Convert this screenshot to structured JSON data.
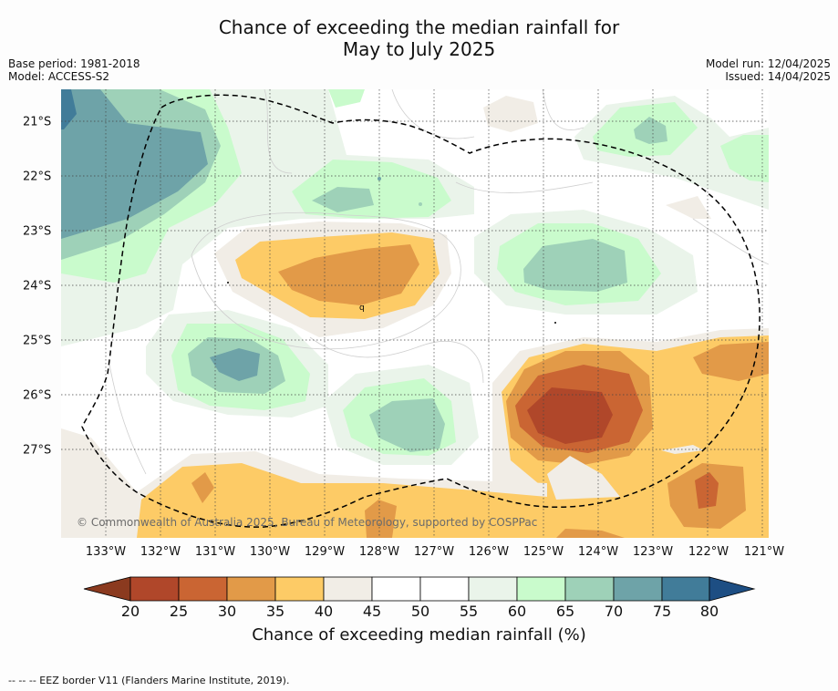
{
  "title_line1": "Chance of exceeding the median rainfall for",
  "title_line2": "May to July 2025",
  "base_period": "Base period: 1981-2018",
  "model": "Model: ACCESS-S2",
  "model_run": "Model run: 12/04/2025",
  "issued": "Issued: 14/04/2025",
  "copyright": "© Commonwealth of Australia 2025, Bureau of Meteorology, supported by COSPPac",
  "longitude_labels": [
    "133°W",
    "132°W",
    "131°W",
    "130°W",
    "129°W",
    "128°W",
    "127°W",
    "126°W",
    "125°W",
    "124°W",
    "123°W",
    "122°W",
    "121°W"
  ],
  "latitude_labels": [
    "21°S",
    "22°S",
    "23°S",
    "24°S",
    "25°S",
    "26°S",
    "27°S"
  ],
  "colorbar": {
    "title": "Chance of exceeding median rainfall (%)",
    "ticks": [
      "20",
      "25",
      "30",
      "35",
      "40",
      "45",
      "50",
      "55",
      "60",
      "65",
      "70",
      "75",
      "80"
    ],
    "colors": [
      "#8b3a1f",
      "#b0472a",
      "#ca6533",
      "#e29a48",
      "#fdcb66",
      "#f1ede6",
      "#ffffff",
      "#ffffff",
      "#eaf4ea",
      "#c9fbcc",
      "#9ed1b8",
      "#6ea3a8",
      "#417c99",
      "#1d4e83"
    ]
  },
  "legend_footer": "--  --  -- EEZ border V11 (Flanders Marine Institute, 2019)."
}
